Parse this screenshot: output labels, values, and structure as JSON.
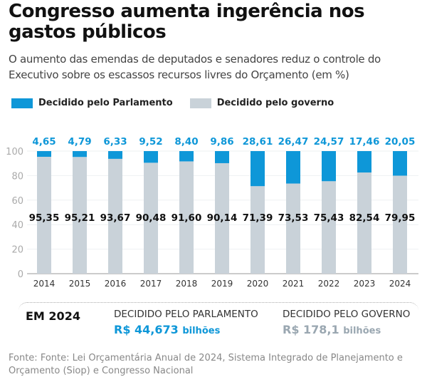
{
  "title": "Congresso aumenta ingerência nos gastos públicos",
  "subtitle": "O aumento das emendas de deputados e senadores reduz o controle do Executivo sobre os escassos recursos livres do Orçamento (em %)",
  "colors": {
    "parlamento": "#0e97d8",
    "governo": "#c9d2d9"
  },
  "chart_data": {
    "type": "bar",
    "stacked": true,
    "categories": [
      "2014",
      "2015",
      "2016",
      "2017",
      "2018",
      "2019",
      "2020",
      "2021",
      "2022",
      "2023",
      "2024"
    ],
    "series": [
      {
        "name": "Decidido pelo governo",
        "values": [
          95.35,
          95.21,
          93.67,
          90.48,
          91.6,
          90.14,
          71.39,
          73.53,
          75.43,
          82.54,
          79.95
        ],
        "labels": [
          "95,35",
          "95,21",
          "93,67",
          "90,48",
          "91,60",
          "90,14",
          "71,39",
          "73,53",
          "75,43",
          "82,54",
          "79,95"
        ]
      },
      {
        "name": "Decidido pelo Parlamento",
        "values": [
          4.65,
          4.79,
          6.33,
          9.52,
          8.4,
          9.86,
          28.61,
          26.47,
          24.57,
          17.46,
          20.05
        ],
        "labels": [
          "4,65",
          "4,79",
          "6,33",
          "9,52",
          "8,40",
          "9,86",
          "28,61",
          "26,47",
          "24,57",
          "17,46",
          "20,05"
        ]
      }
    ],
    "yticks": [
      "0",
      "20",
      "40",
      "60",
      "80",
      "100"
    ],
    "ylim": [
      0,
      100
    ],
    "grid": true,
    "legend": "top-left"
  },
  "summary": {
    "heading": "EM 2024",
    "parl_label": "DECIDIDO PELO PARLAMENTO",
    "parl_value": "R$ 44,673",
    "parl_unit": "bilhões",
    "gov_label": "DECIDIDO PELO GOVERNO",
    "gov_value": "R$ 178,1",
    "gov_unit": "bilhões"
  },
  "source": "Fonte: Fonte: Lei Orçamentária Anual de 2024, Sistema Integrado de Planejamento e Orçamento (Siop) e Congresso Nacional"
}
